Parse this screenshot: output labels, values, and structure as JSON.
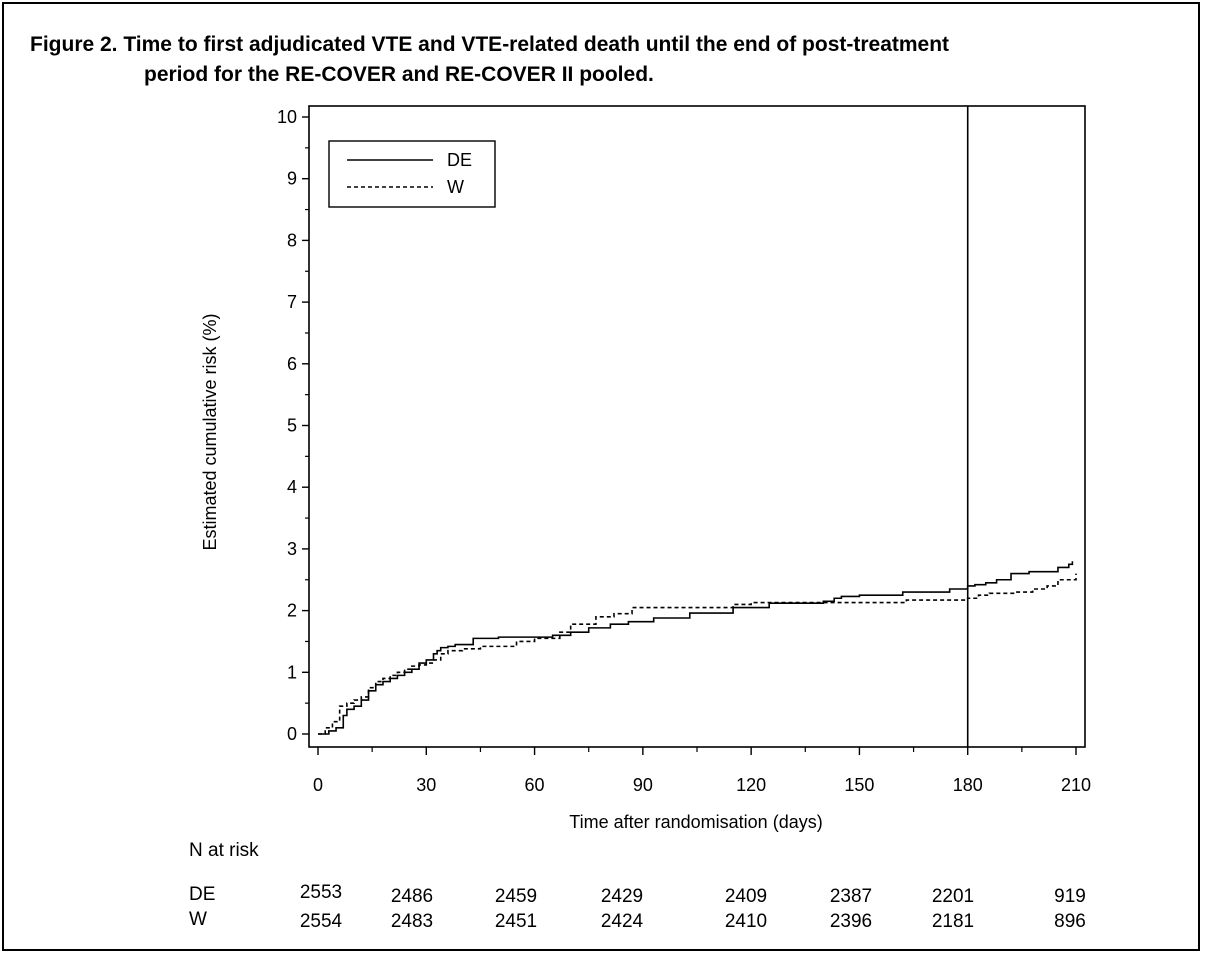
{
  "caption": {
    "line1": "Figure 2. Time to first adjudicated VTE and VTE-related death until the end of post-treatment",
    "line2": "period for the RE-COVER and RE-COVER II pooled."
  },
  "chart_data": {
    "type": "line",
    "title": "Figure 2. Time to first adjudicated VTE and VTE-related death until the end of post-treatment period for the RE-COVER and RE-COVER II pooled.",
    "xlabel": "Time after randomisation (days)",
    "ylabel": "Estimated cumulative risk (%)",
    "xlim": [
      0,
      210
    ],
    "ylim": [
      0,
      10
    ],
    "xticks": [
      0,
      30,
      60,
      90,
      120,
      150,
      180,
      210
    ],
    "yticks": [
      0,
      1,
      2,
      3,
      4,
      5,
      6,
      7,
      8,
      9,
      10
    ],
    "reference_line_x": 180,
    "legend_position": "top-left",
    "grid": false,
    "series": [
      {
        "name": "DE",
        "style": "solid",
        "x": [
          0,
          3,
          5,
          7,
          8,
          10,
          12,
          14,
          16,
          18,
          20,
          22,
          24,
          26,
          28,
          30,
          32,
          33,
          34,
          36,
          38,
          43,
          50,
          60,
          65,
          70,
          75,
          81,
          86,
          93,
          103,
          115,
          125,
          140,
          143,
          145,
          150,
          162,
          175,
          180,
          182,
          185,
          188,
          192,
          197,
          205,
          208,
          209
        ],
        "y": [
          0,
          0.05,
          0.1,
          0.3,
          0.4,
          0.45,
          0.55,
          0.7,
          0.8,
          0.85,
          0.9,
          0.95,
          1.0,
          1.05,
          1.15,
          1.2,
          1.3,
          1.35,
          1.4,
          1.42,
          1.45,
          1.55,
          1.57,
          1.57,
          1.6,
          1.65,
          1.72,
          1.78,
          1.82,
          1.88,
          1.96,
          2.05,
          2.12,
          2.15,
          2.2,
          2.23,
          2.25,
          2.3,
          2.35,
          2.4,
          2.42,
          2.45,
          2.5,
          2.6,
          2.63,
          2.7,
          2.75,
          2.8
        ]
      },
      {
        "name": "W",
        "style": "dashed",
        "x": [
          0,
          2,
          4,
          6,
          8,
          10,
          12,
          14,
          16,
          18,
          20,
          22,
          24,
          26,
          28,
          30,
          32,
          34,
          36,
          40,
          45,
          55,
          60,
          67,
          70,
          77,
          82,
          87,
          115,
          120,
          163,
          180,
          183,
          186,
          193,
          198,
          202,
          205,
          210
        ],
        "y": [
          0,
          0.1,
          0.2,
          0.45,
          0.5,
          0.55,
          0.6,
          0.75,
          0.85,
          0.9,
          0.95,
          1.0,
          1.05,
          1.1,
          1.12,
          1.15,
          1.2,
          1.3,
          1.35,
          1.38,
          1.42,
          1.5,
          1.55,
          1.65,
          1.78,
          1.9,
          1.95,
          2.05,
          2.1,
          2.13,
          2.17,
          2.2,
          2.25,
          2.28,
          2.3,
          2.35,
          2.4,
          2.5,
          2.6
        ]
      }
    ]
  },
  "risk_table": {
    "title": "N at risk",
    "rows": [
      {
        "label": "DE",
        "values": [
          "2553",
          "2486",
          "2459",
          "2429",
          "2409",
          "2387",
          "2201",
          "919"
        ]
      },
      {
        "label": "W",
        "values": [
          "2554",
          "2483",
          "2451",
          "2424",
          "2410",
          "2396",
          "2181",
          "896"
        ]
      }
    ]
  }
}
